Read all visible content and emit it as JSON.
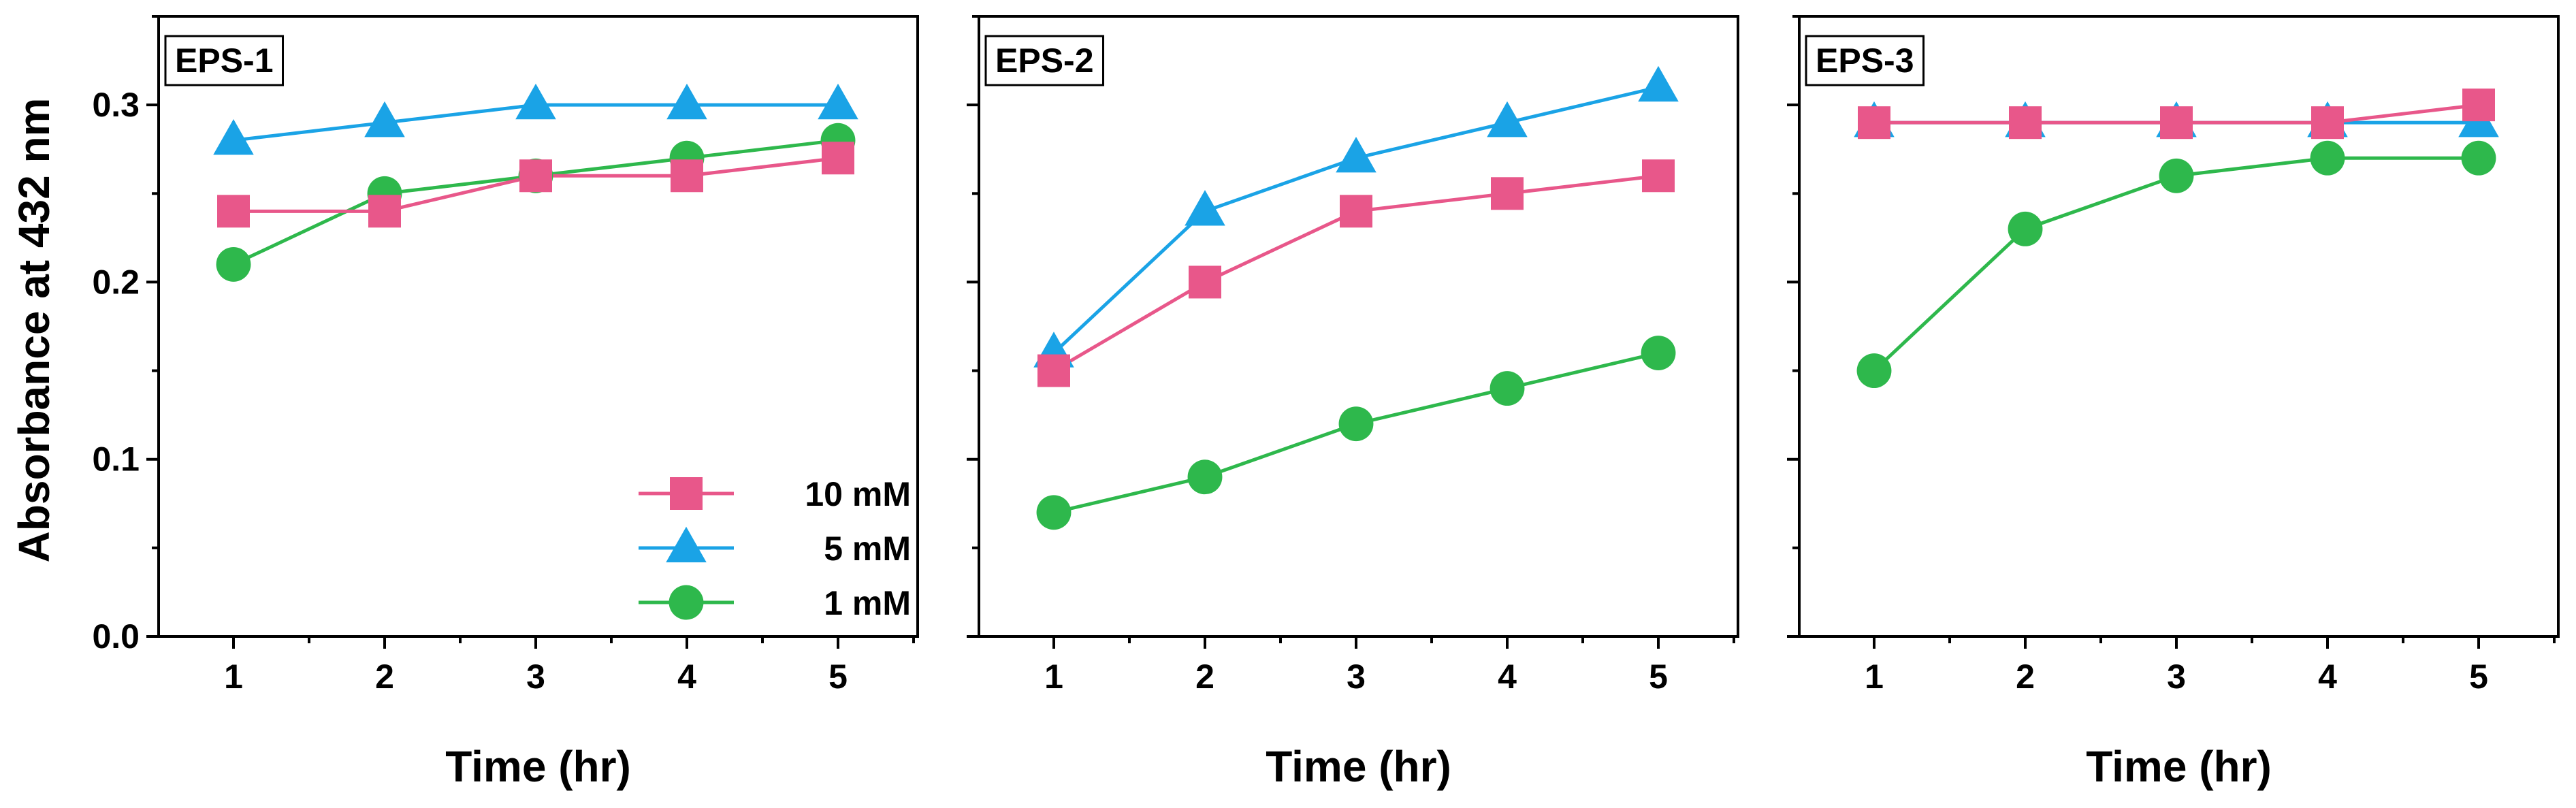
{
  "figure": {
    "ylabel": "Absorbance at 432 nm",
    "xlabel": "Time (hr)"
  },
  "chart_data": [
    {
      "type": "line",
      "title": "EPS-1",
      "xlabel": "Time (hr)",
      "ylabel": "Absorbance at 432 nm",
      "x": [
        1,
        2,
        3,
        4,
        5
      ],
      "xticks": [
        "1",
        "2",
        "3",
        "4",
        "5"
      ],
      "yticks": [
        "0.0",
        "0.1",
        "0.2",
        "0.3"
      ],
      "ylim": [
        0,
        0.35
      ],
      "series": [
        {
          "name": "10 mM",
          "color": "#E8578A",
          "marker": "square",
          "values": [
            0.24,
            0.24,
            0.26,
            0.26,
            0.27
          ]
        },
        {
          "name": "5 mM",
          "color": "#1AA3E6",
          "marker": "triangle",
          "values": [
            0.28,
            0.29,
            0.3,
            0.3,
            0.3
          ]
        },
        {
          "name": "1 mM",
          "color": "#2EB84C",
          "marker": "circle",
          "values": [
            0.21,
            0.25,
            0.26,
            0.27,
            0.28
          ]
        }
      ],
      "legend": "bottom-right",
      "grid": false
    },
    {
      "type": "line",
      "title": "EPS-2",
      "xlabel": "Time (hr)",
      "x": [
        1,
        2,
        3,
        4,
        5
      ],
      "xticks": [
        "1",
        "2",
        "3",
        "4",
        "5"
      ],
      "ylim": [
        0,
        0.35
      ],
      "series": [
        {
          "name": "10 mM",
          "color": "#E8578A",
          "marker": "square",
          "values": [
            0.15,
            0.2,
            0.24,
            0.25,
            0.26
          ]
        },
        {
          "name": "5 mM",
          "color": "#1AA3E6",
          "marker": "triangle",
          "values": [
            0.16,
            0.24,
            0.27,
            0.29,
            0.31
          ]
        },
        {
          "name": "1 mM",
          "color": "#2EB84C",
          "marker": "circle",
          "values": [
            0.07,
            0.09,
            0.12,
            0.14,
            0.16
          ]
        }
      ],
      "grid": false
    },
    {
      "type": "line",
      "title": "EPS-3",
      "xlabel": "Time (hr)",
      "x": [
        1,
        2,
        3,
        4,
        5
      ],
      "xticks": [
        "1",
        "2",
        "3",
        "4",
        "5"
      ],
      "ylim": [
        0,
        0.35
      ],
      "series": [
        {
          "name": "10 mM",
          "color": "#E8578A",
          "marker": "square",
          "values": [
            0.29,
            0.29,
            0.29,
            0.29,
            0.3
          ]
        },
        {
          "name": "5 mM",
          "color": "#1AA3E6",
          "marker": "triangle",
          "values": [
            0.29,
            0.29,
            0.29,
            0.29,
            0.29
          ]
        },
        {
          "name": "1 mM",
          "color": "#2EB84C",
          "marker": "circle",
          "values": [
            0.15,
            0.23,
            0.26,
            0.27,
            0.27
          ]
        }
      ],
      "grid": false
    }
  ]
}
